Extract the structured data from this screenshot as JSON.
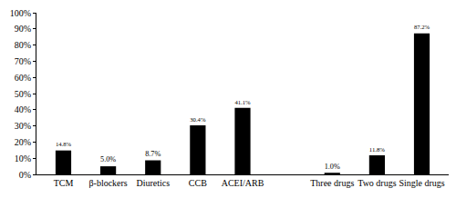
{
  "chart_data": {
    "type": "bar",
    "categories": [
      "TCM",
      "β-blockers",
      "Diuretics",
      "CCB",
      "ACEI/ARB",
      null,
      "Three drugs",
      "Two drugs",
      "Single drugs"
    ],
    "values": [
      14.8,
      5.0,
      8.7,
      30.4,
      41.1,
      null,
      1.0,
      11.8,
      87.2
    ],
    "value_labels": [
      "14.8%",
      "5.0%",
      "8.7%",
      "30.4%",
      "41.1%",
      null,
      "1.0%",
      "11.8%",
      "87.2%"
    ],
    "color": "#000000",
    "ylim": [
      0,
      100
    ],
    "yticks": [
      {
        "value": 0,
        "label": "0%"
      },
      {
        "value": 10,
        "label": "10%"
      },
      {
        "value": 20,
        "label": "20%"
      },
      {
        "value": 30,
        "label": "30%"
      },
      {
        "value": 40,
        "label": "40%"
      },
      {
        "value": 50,
        "label": "50%"
      },
      {
        "value": 60,
        "label": "60%"
      },
      {
        "value": 70,
        "label": "70%"
      },
      {
        "value": 80,
        "label": "80%"
      },
      {
        "value": 90,
        "label": "90%"
      },
      {
        "value": 100,
        "label": "100%"
      }
    ],
    "grid": false,
    "data_labels": true
  }
}
